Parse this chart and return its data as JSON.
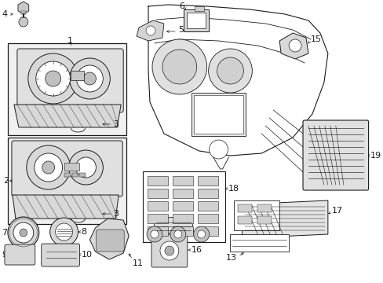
{
  "bg_color": "#ffffff",
  "line_color": "#1a1a1a",
  "fig_width": 4.89,
  "fig_height": 3.6,
  "dpi": 100,
  "gray_fill": "#e8e8e8",
  "light_gray": "#f0f0f0",
  "mid_gray": "#d0d0d0",
  "box_bg": "#efefef"
}
